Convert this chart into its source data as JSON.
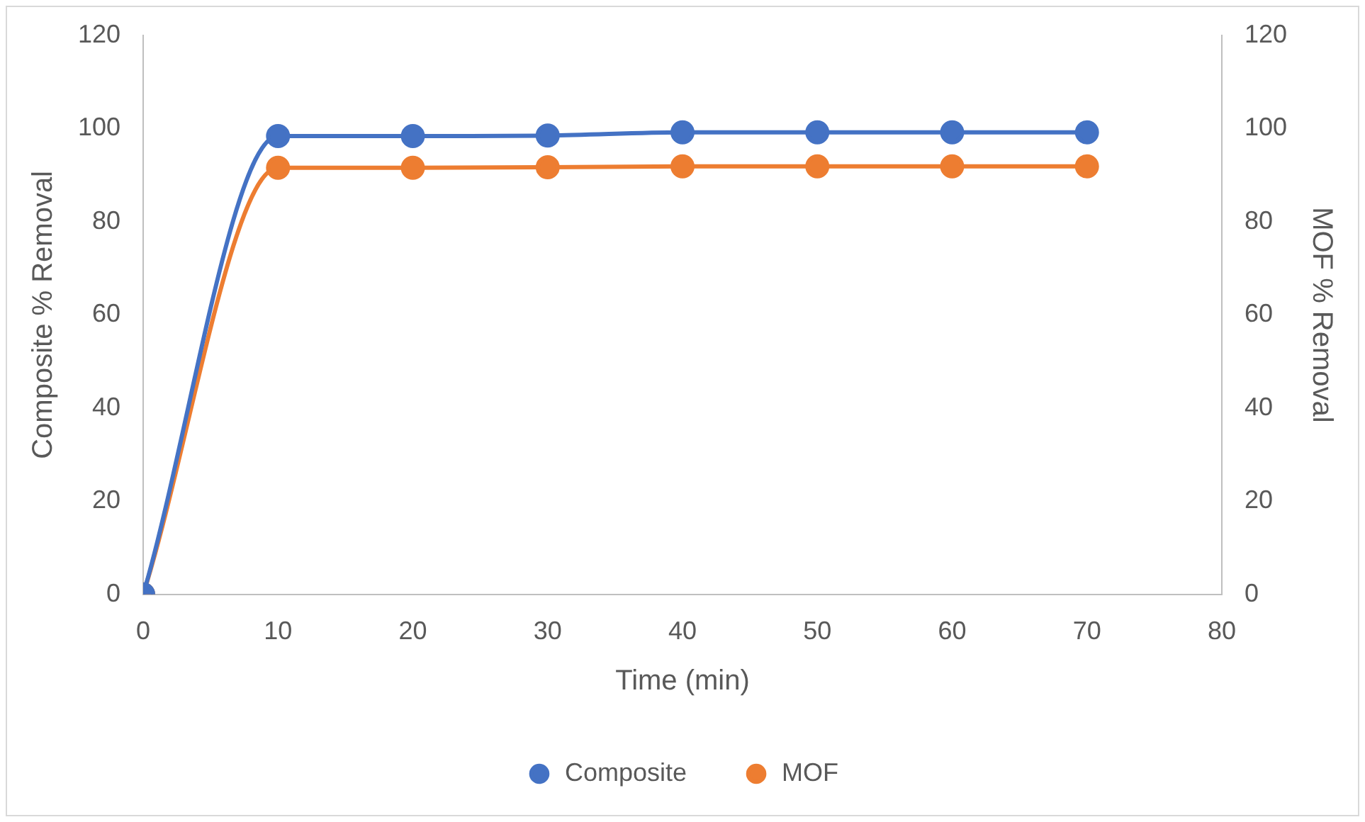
{
  "chart_data": {
    "type": "line",
    "xlabel": "Time (min)",
    "ylabel": "Composite % Removal",
    "y2label": "MOF % Removal",
    "x": [
      0,
      10,
      20,
      30,
      40,
      50,
      60,
      70
    ],
    "series": [
      {
        "name": "Composite",
        "color": "#4472c4",
        "values": [
          0,
          98.4,
          98.4,
          98.5,
          99.2,
          99.2,
          99.2,
          99.2
        ]
      },
      {
        "name": "MOF",
        "color": "#ed7d31",
        "axis": "y2",
        "values": [
          0,
          91.6,
          91.6,
          91.7,
          91.9,
          91.9,
          91.9,
          91.9
        ]
      }
    ],
    "xlim": [
      0,
      80
    ],
    "xticks": [
      0,
      10,
      20,
      30,
      40,
      50,
      60,
      70,
      80
    ],
    "ylim": [
      0,
      120
    ],
    "yticks": [
      0,
      20,
      40,
      60,
      80,
      100,
      120
    ],
    "y2lim": [
      0,
      120
    ],
    "y2ticks": [
      0,
      20,
      40,
      60,
      80,
      100,
      120
    ],
    "grid": false,
    "legend": "bottom",
    "marker": "circle",
    "line_style": "solid"
  }
}
